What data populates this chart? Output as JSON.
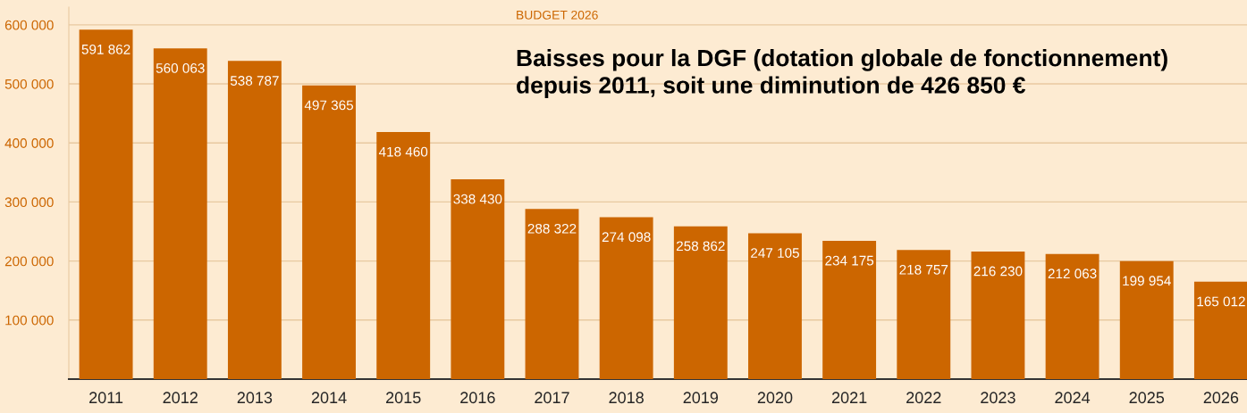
{
  "chart_data": {
    "type": "bar",
    "subtitle": "BUDGET 2026",
    "title": "Baisses pour la DGF (dotation globale de fonctionnement)\ndepuis 2011, soit une diminution de 426 850 €",
    "categories": [
      "2011",
      "2012",
      "2013",
      "2014",
      "2015",
      "2016",
      "2017",
      "2018",
      "2019",
      "2020",
      "2021",
      "2022",
      "2023",
      "2024",
      "2025",
      "2026"
    ],
    "values": [
      591862,
      560063,
      538787,
      497365,
      418460,
      338430,
      288322,
      274098,
      258862,
      247105,
      234175,
      218757,
      216230,
      212063,
      199954,
      165012
    ],
    "value_labels": [
      "591 862",
      "560 063",
      "538 787",
      "497 365",
      "418 460",
      "338 430",
      "288 322",
      "274 098",
      "258 862",
      "247 105",
      "234 175",
      "218 757",
      "216 230",
      "212 063",
      "199 954",
      "165 012"
    ],
    "color": "#cc6600",
    "ylim": [
      0,
      630000
    ],
    "yticks": [
      {
        "value": 100000,
        "label": "100 000"
      },
      {
        "value": 200000,
        "label": "200 000"
      },
      {
        "value": 300000,
        "label": "300 000"
      },
      {
        "value": 400000,
        "label": "400 000"
      },
      {
        "value": 500000,
        "label": "500 000"
      },
      {
        "value": 600000,
        "label": "600 000"
      }
    ],
    "grid": "y"
  }
}
